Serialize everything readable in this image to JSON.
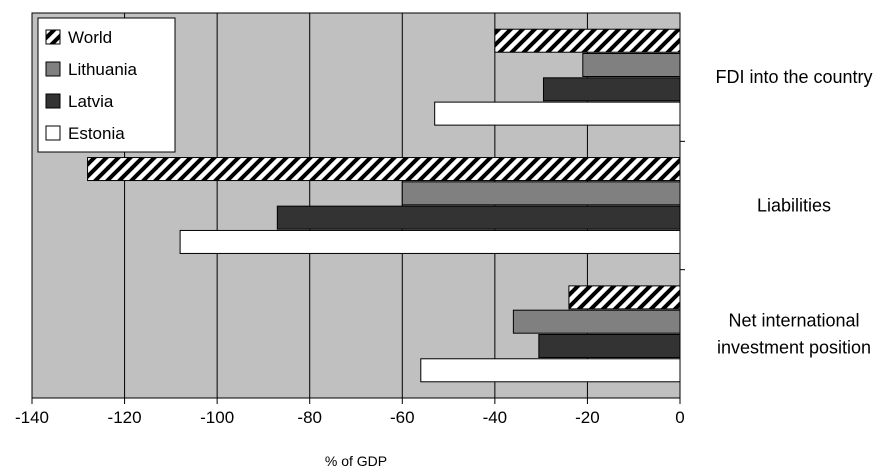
{
  "chart_data": {
    "type": "bar",
    "orientation": "horizontal",
    "xlabel": "% of GDP",
    "xlim": [
      -140,
      0
    ],
    "xticks": [
      -140,
      -120,
      -100,
      -80,
      -60,
      -40,
      -20,
      0
    ],
    "grid": "vertical",
    "legend_position": "top-left",
    "categories": [
      "FDI into the country",
      "Liabilities",
      "Net international investment position"
    ],
    "category_label_lines": [
      [
        "FDI into the country"
      ],
      [
        "Liabilities"
      ],
      [
        "Net international",
        "investment position"
      ]
    ],
    "series": [
      {
        "name": "World",
        "fill": "hatched",
        "values": [
          -40,
          -128,
          -24
        ]
      },
      {
        "name": "Lithuania",
        "fill": "#808080",
        "values": [
          -21,
          -60,
          -36
        ]
      },
      {
        "name": "Latvia",
        "fill": "#333333",
        "values": [
          -29.5,
          -87,
          -30.5
        ]
      },
      {
        "name": "Estonia",
        "fill": "#ffffff",
        "values": [
          -53,
          -108,
          -56
        ]
      }
    ],
    "colors": {
      "plot_background": "#c0c0c0",
      "gridline": "#000000",
      "bar_border": "#000000"
    }
  }
}
